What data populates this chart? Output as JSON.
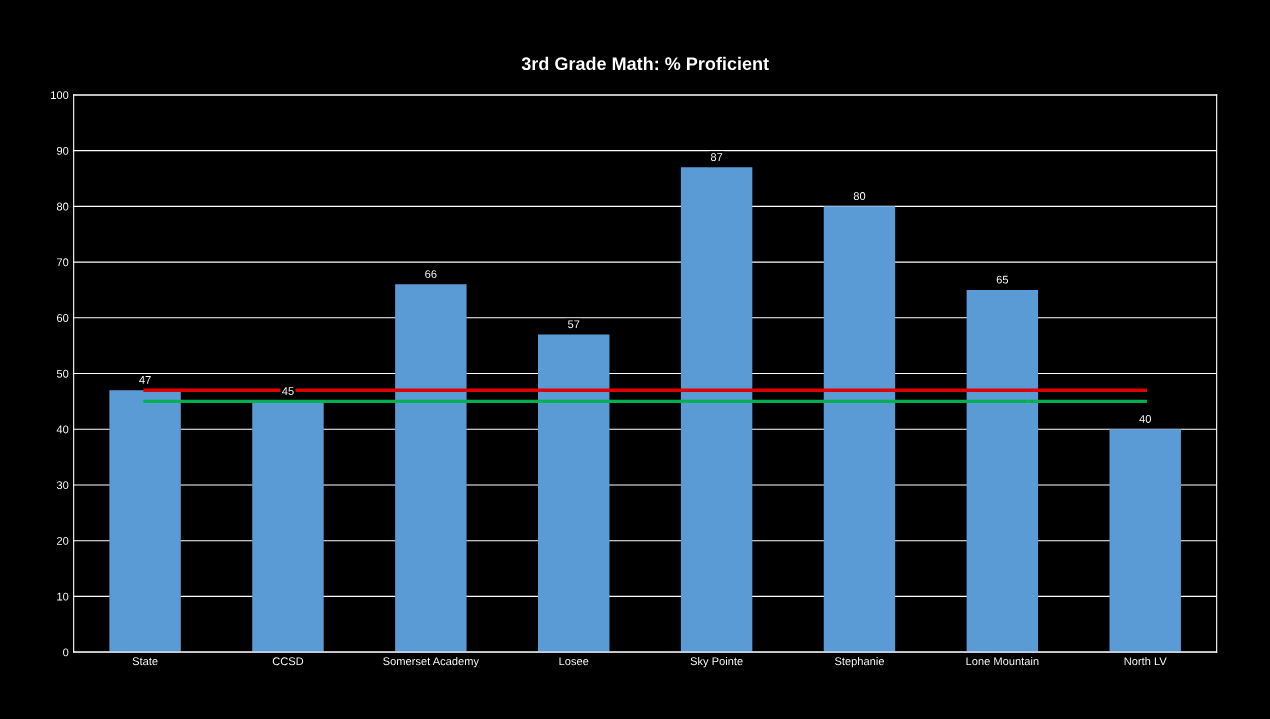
{
  "chart_data": {
    "type": "bar",
    "title": "3rd Grade Math: % Proficient",
    "categories": [
      "State",
      "CCSD",
      "Somerset Academy",
      "Losee",
      "Sky Pointe",
      "Stephanie",
      "Lone Mountain",
      "North LV"
    ],
    "series": [
      {
        "color": "#5b9bd5",
        "values": [
          47,
          45,
          66,
          57,
          87,
          80,
          65,
          40
        ],
        "value_labels": [
          "47",
          "45",
          "66",
          "57",
          "87",
          "80",
          "65",
          "40"
        ]
      },
      {
        "type": "line",
        "color": "#e00000",
        "values": [
          47,
          47,
          47,
          47,
          47,
          47,
          47,
          47
        ]
      },
      {
        "type": "line",
        "color": "#00b050",
        "values": [
          45,
          45,
          45,
          45,
          45,
          45,
          45,
          45
        ]
      }
    ],
    "ylim": [
      0,
      100
    ],
    "yticks": [
      0,
      10,
      20,
      30,
      40,
      50,
      60,
      70,
      80,
      90,
      100
    ],
    "grid": "y",
    "marker": "none",
    "line_style": "solid"
  }
}
